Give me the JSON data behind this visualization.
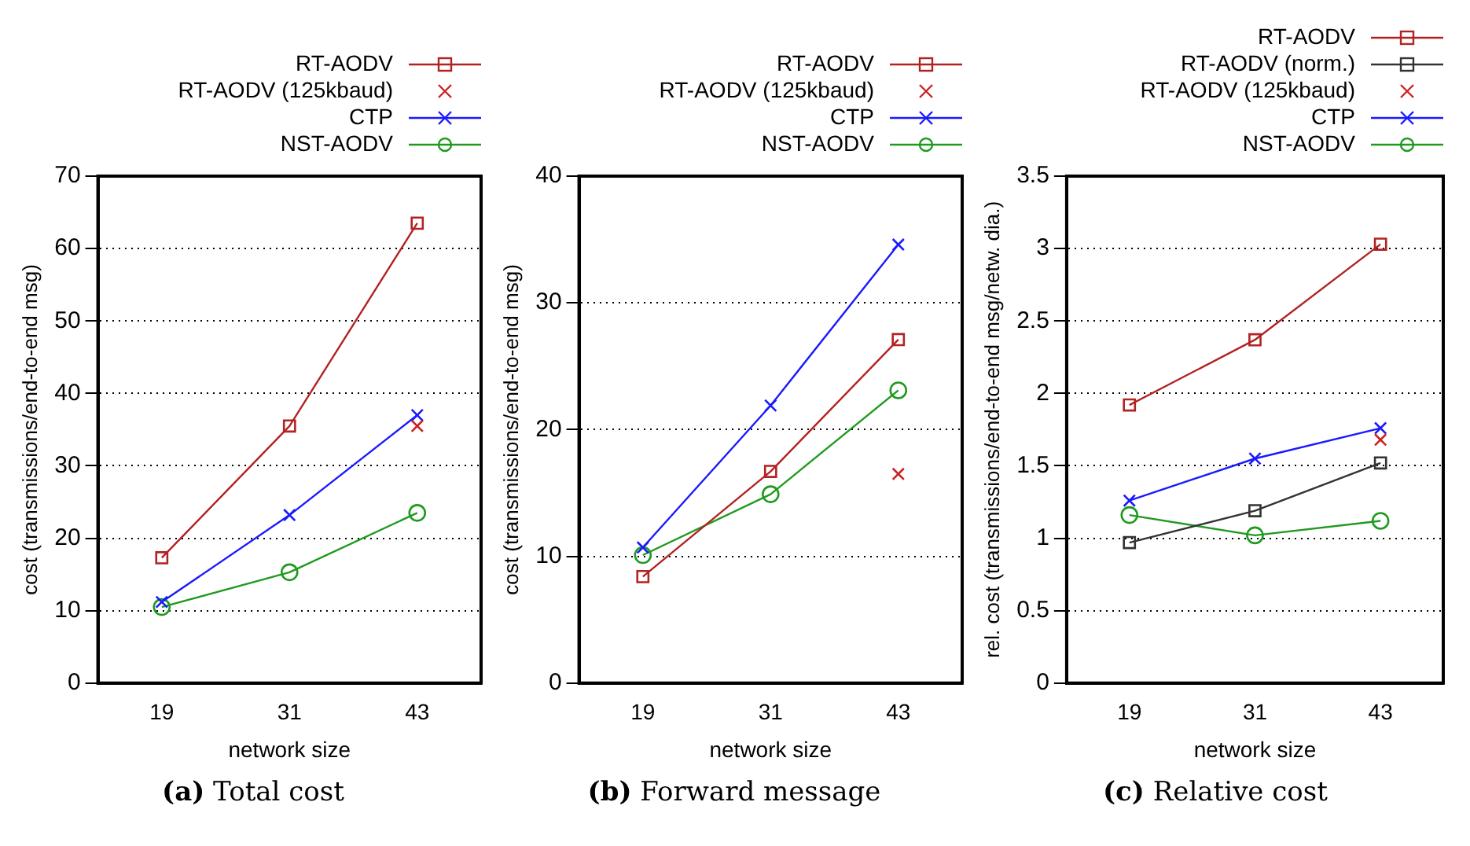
{
  "chart_data": [
    {
      "type": "line",
      "title": "(a) Total cost",
      "xlabel": "network size",
      "ylabel": "cost (transmissions/end-to-end msg)",
      "categories": [
        "19",
        "31",
        "43"
      ],
      "ylim": [
        0,
        70
      ],
      "yticks": [
        0,
        10,
        20,
        30,
        40,
        50,
        60,
        70
      ],
      "grid": "y",
      "legend": "top right",
      "line_style": "solid",
      "series": [
        {
          "name": "RT-AODV",
          "color": "#b22222",
          "marker": "square",
          "values": [
            17.3,
            35.5,
            63.5
          ]
        },
        {
          "name": "RT-AODV (125kbaud)",
          "type": "scatter",
          "color": "#cc2222",
          "marker": "cross",
          "values": [
            null,
            null,
            35.5
          ]
        },
        {
          "name": "CTP",
          "color": "#1a1aff",
          "marker": "cross",
          "values": [
            11.2,
            23.2,
            37.0
          ]
        },
        {
          "name": "NST-AODV",
          "color": "#1f9a1f",
          "marker": "circle",
          "values": [
            10.5,
            15.3,
            23.5
          ]
        }
      ]
    },
    {
      "type": "line",
      "title": "(b) Forward message",
      "xlabel": "network size",
      "ylabel": "cost (transmissions/end-to-end msg)",
      "categories": [
        "19",
        "31",
        "43"
      ],
      "ylim": [
        0,
        40
      ],
      "yticks": [
        0,
        10,
        20,
        30,
        40
      ],
      "grid": "y",
      "legend": "top right",
      "line_style": "solid",
      "series": [
        {
          "name": "RT-AODV",
          "color": "#b22222",
          "marker": "square",
          "values": [
            8.4,
            16.7,
            27.1
          ]
        },
        {
          "name": "RT-AODV (125kbaud)",
          "type": "scatter",
          "color": "#cc2222",
          "marker": "cross",
          "values": [
            null,
            null,
            16.5
          ]
        },
        {
          "name": "CTP",
          "color": "#1a1aff",
          "marker": "cross",
          "values": [
            10.7,
            21.9,
            34.6
          ]
        },
        {
          "name": "NST-AODV",
          "color": "#1f9a1f",
          "marker": "circle",
          "values": [
            10.1,
            14.9,
            23.1
          ]
        }
      ]
    },
    {
      "type": "line",
      "title": "(c) Relative cost",
      "xlabel": "network size",
      "ylabel": "rel. cost (transmissions/end-to-end msg/netw. dia.)",
      "categories": [
        "19",
        "31",
        "43"
      ],
      "ylim": [
        0,
        3.5
      ],
      "yticks": [
        0,
        0.5,
        1,
        1.5,
        2,
        2.5,
        3,
        3.5
      ],
      "grid": "y",
      "legend": "top right",
      "line_style": "solid",
      "series": [
        {
          "name": "RT-AODV",
          "color": "#b22222",
          "marker": "square",
          "values": [
            1.92,
            2.37,
            3.03
          ]
        },
        {
          "name": "RT-AODV (norm.)",
          "color": "#333333",
          "marker": "square",
          "values": [
            0.97,
            1.19,
            1.52
          ]
        },
        {
          "name": "RT-AODV (125kbaud)",
          "type": "scatter",
          "color": "#cc2222",
          "marker": "cross",
          "values": [
            null,
            null,
            1.68
          ]
        },
        {
          "name": "CTP",
          "color": "#1a1aff",
          "marker": "cross",
          "values": [
            1.26,
            1.55,
            1.76
          ]
        },
        {
          "name": "NST-AODV",
          "color": "#1f9a1f",
          "marker": "circle",
          "values": [
            1.16,
            1.02,
            1.12
          ]
        }
      ]
    }
  ]
}
